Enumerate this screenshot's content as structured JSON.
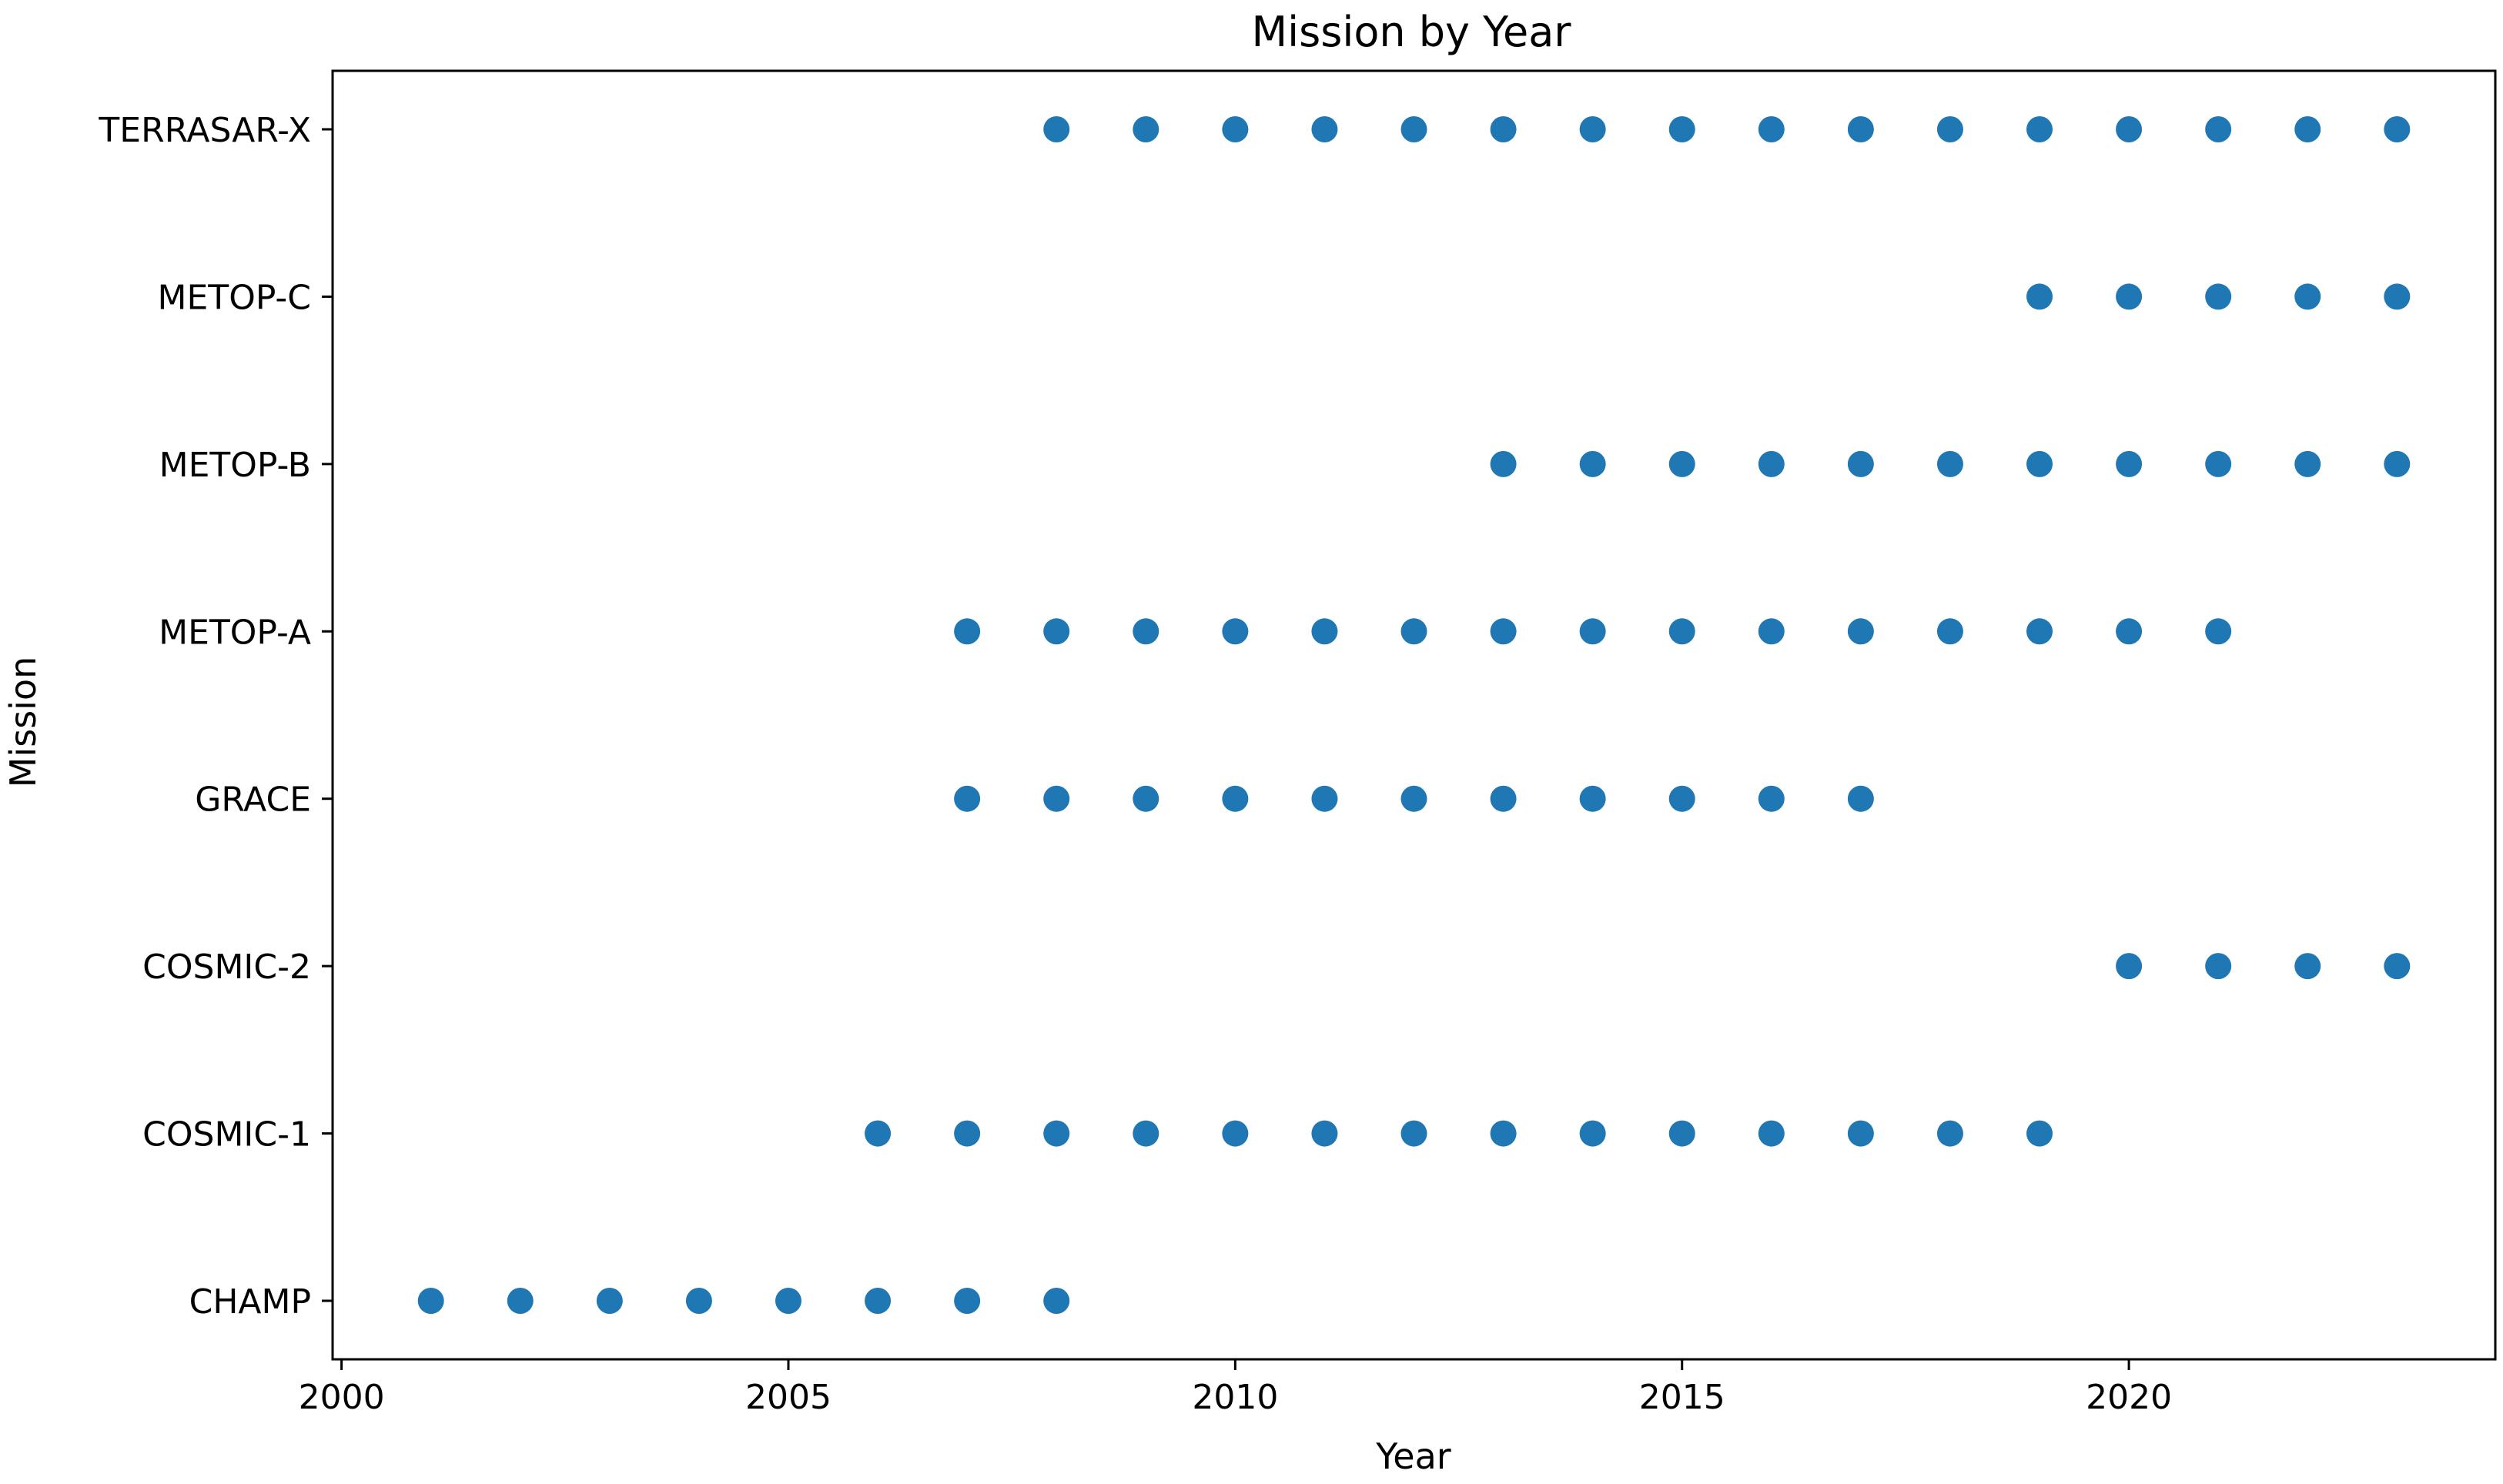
{
  "chart_data": {
    "type": "scatter",
    "title": "Mission by Year",
    "xlabel": "Year",
    "ylabel": "Mission",
    "xlim": [
      1999.9,
      2024.1
    ],
    "xticks": [
      2000,
      2005,
      2010,
      2015,
      2020
    ],
    "categories": [
      "CHAMP",
      "COSMIC-1",
      "COSMIC-2",
      "GRACE",
      "METOP-A",
      "METOP-B",
      "METOP-C",
      "TERRASAR-X"
    ],
    "grid": false,
    "marker_color": "#1f77b4",
    "series": [
      {
        "category": "TERRASAR-X",
        "years": [
          2008,
          2009,
          2010,
          2011,
          2012,
          2013,
          2014,
          2015,
          2016,
          2017,
          2018,
          2019,
          2020,
          2021,
          2022,
          2023
        ]
      },
      {
        "category": "METOP-C",
        "years": [
          2019,
          2020,
          2021,
          2022,
          2023
        ]
      },
      {
        "category": "METOP-B",
        "years": [
          2013,
          2014,
          2015,
          2016,
          2017,
          2018,
          2019,
          2020,
          2021,
          2022,
          2023
        ]
      },
      {
        "category": "METOP-A",
        "years": [
          2007,
          2008,
          2009,
          2010,
          2011,
          2012,
          2013,
          2014,
          2015,
          2016,
          2017,
          2018,
          2019,
          2020,
          2021
        ]
      },
      {
        "category": "GRACE",
        "years": [
          2007,
          2008,
          2009,
          2010,
          2011,
          2012,
          2013,
          2014,
          2015,
          2016,
          2017
        ]
      },
      {
        "category": "COSMIC-2",
        "years": [
          2020,
          2021,
          2022,
          2023
        ]
      },
      {
        "category": "COSMIC-1",
        "years": [
          2006,
          2007,
          2008,
          2009,
          2010,
          2011,
          2012,
          2013,
          2014,
          2015,
          2016,
          2017,
          2018,
          2019
        ]
      },
      {
        "category": "CHAMP",
        "years": [
          2001,
          2002,
          2003,
          2004,
          2005,
          2006,
          2007,
          2008
        ]
      }
    ]
  }
}
